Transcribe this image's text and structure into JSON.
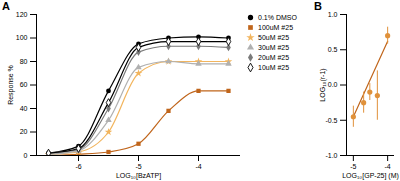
{
  "chart_data": [
    {
      "title": "A",
      "type": "line",
      "x_label": "LOG₁₀[BzATP]",
      "y_label": "Response %",
      "x": [
        -6.5,
        -6,
        -5.5,
        -5,
        -4.5,
        -4,
        -3.5
      ],
      "series": [
        {
          "name": "0.1% DMSO",
          "color": "#000000",
          "marker": "circle",
          "values": [
            2,
            8,
            55,
            95,
            100,
            101,
            100
          ]
        },
        {
          "name": "100uM #25",
          "color": "#c0651b",
          "marker": "square",
          "values": [
            0,
            1,
            3,
            10,
            38,
            55,
            55
          ]
        },
        {
          "name": "50uM #25",
          "color": "#f2b55e",
          "marker": "star",
          "values": [
            1,
            3,
            20,
            70,
            80,
            80,
            80
          ]
        },
        {
          "name": "30uM #25",
          "color": "#b0b0b0",
          "marker": "triangle",
          "values": [
            1,
            4,
            30,
            75,
            80,
            78,
            78
          ]
        },
        {
          "name": "20uM #25",
          "color": "#7a7a7a",
          "marker": "diamond",
          "values": [
            2,
            5,
            40,
            88,
            93,
            93,
            92
          ]
        },
        {
          "name": "10uM #25",
          "color": "#000000",
          "marker": "diamond-open",
          "values": [
            2,
            6,
            45,
            92,
            97,
            97,
            97
          ]
        }
      ],
      "xlim": [
        -6.7,
        -3.3
      ],
      "xticks": [
        -6,
        -5,
        -4
      ],
      "ylim": [
        0,
        120
      ],
      "yticks": [
        0,
        20,
        40,
        60,
        80,
        100,
        120
      ],
      "legend": "right",
      "grid": false
    },
    {
      "title": "B",
      "type": "scatter",
      "x_label": "LOG₁₀[GP-25] (M)",
      "y_label": "LOG₁₀(r-1)",
      "x": [
        -5,
        -4.7,
        -4.52,
        -4.3,
        -4
      ],
      "values": [
        -0.45,
        -0.25,
        -0.1,
        -0.15,
        0.7
      ],
      "errors": [
        0.15,
        0.15,
        0.12,
        0.35,
        0.12
      ],
      "color": "#e0913a",
      "marker": "circle",
      "fit_line": {
        "x": [
          -5,
          -4
        ],
        "y": [
          -0.45,
          0.62
        ],
        "color": "#c0651b"
      },
      "xlim": [
        -5.2,
        -3.8
      ],
      "xticks": [
        -5,
        -4
      ],
      "ylim": [
        -1,
        1
      ],
      "yticks": [
        {
          "value": -1,
          "label": "-1.0"
        },
        {
          "value": -0.5,
          "label": "-0.5"
        },
        {
          "value": 0,
          "label": "0.0"
        },
        {
          "value": 0.5,
          "label": "0.5"
        },
        {
          "value": 1,
          "label": "1.0"
        }
      ],
      "grid": false
    }
  ]
}
